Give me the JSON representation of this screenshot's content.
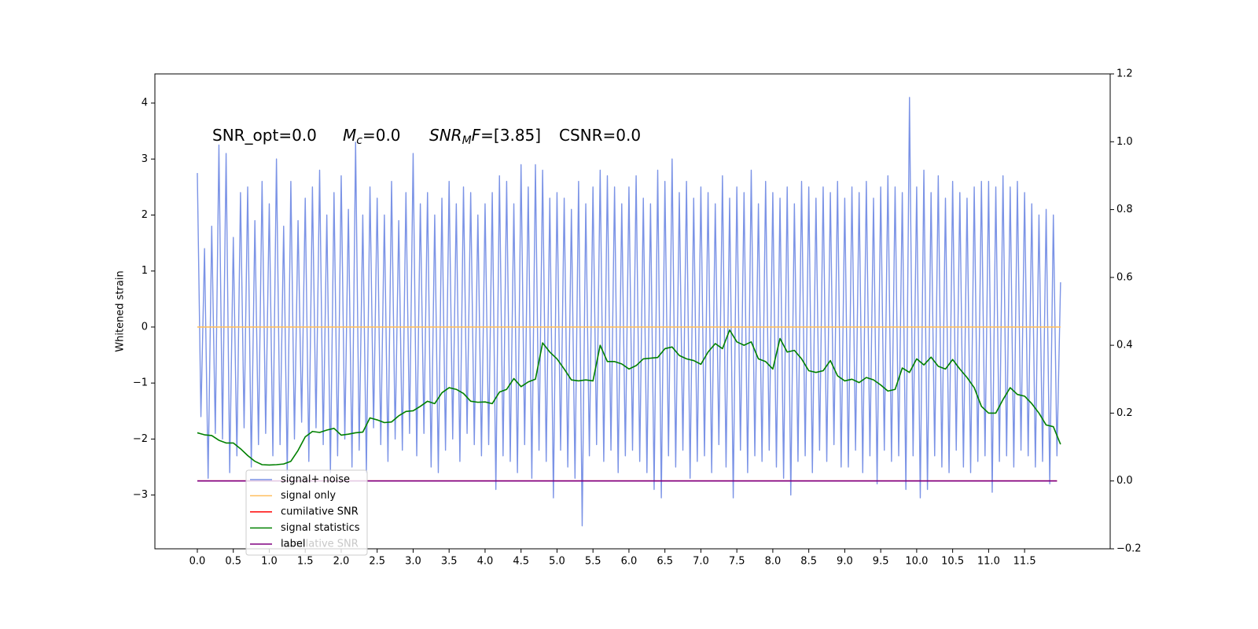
{
  "chart_data": {
    "type": "line",
    "y_label": "Whitened strain",
    "annotations": [
      {
        "text": "SNR_opt=0.0"
      },
      {
        "math": "M",
        "sub": "c",
        "text": "=0.0"
      },
      {
        "math": "SNR",
        "sub": "M",
        "math2": "F",
        "text": "=[3.85]"
      },
      {
        "text": "CSNR=0.0"
      }
    ],
    "xlim": [
      -0.59,
      12.69
    ],
    "ylim": [
      -3.96,
      4.52
    ],
    "y2lim": [
      -0.2,
      1.2
    ],
    "xticks": [
      {
        "value": 0,
        "label": "0.0"
      },
      {
        "value": 0.5,
        "label": "0.5"
      },
      {
        "value": 1,
        "label": "1.0"
      },
      {
        "value": 1.5,
        "label": "1.5"
      },
      {
        "value": 2,
        "label": "2.0"
      },
      {
        "value": 2.5,
        "label": "2.5"
      },
      {
        "value": 3,
        "label": "3.0"
      },
      {
        "value": 3.5,
        "label": "3.5"
      },
      {
        "value": 4,
        "label": "4.0"
      },
      {
        "value": 4.5,
        "label": "4.5"
      },
      {
        "value": 5,
        "label": "5.0"
      },
      {
        "value": 5.5,
        "label": "5.5"
      },
      {
        "value": 6,
        "label": "6.0"
      },
      {
        "value": 6.5,
        "label": "6.5"
      },
      {
        "value": 7,
        "label": "7.0"
      },
      {
        "value": 7.5,
        "label": "7.5"
      },
      {
        "value": 8,
        "label": "8.0"
      },
      {
        "value": 8.5,
        "label": "8.5"
      },
      {
        "value": 9,
        "label": "9.0"
      },
      {
        "value": 9.5,
        "label": "9.5"
      },
      {
        "value": 10,
        "label": "10.0"
      },
      {
        "value": 10.5,
        "label": "10.5"
      },
      {
        "value": 11,
        "label": "11.0"
      },
      {
        "value": 11.5,
        "label": "11.5"
      }
    ],
    "yticks": [
      {
        "value": -3,
        "label": "−3"
      },
      {
        "value": -2,
        "label": "−2"
      },
      {
        "value": -1,
        "label": "−1"
      },
      0,
      1,
      2,
      3,
      4
    ],
    "y2ticks": [
      {
        "value": -0.2,
        "label": "−0.2"
      },
      {
        "value": 0,
        "label": "0.0"
      },
      0.2,
      0.4,
      0.6,
      0.8,
      {
        "value": 1,
        "label": "1.0"
      },
      1.2
    ],
    "background_legend": [
      "cumilative SNR"
    ],
    "series": [
      {
        "name": "signal+ noise",
        "color": "#7b93e6",
        "axis": "y",
        "x": [
          0,
          0.05,
          0.1,
          0.15,
          0.2,
          0.25,
          0.3,
          0.35,
          0.4,
          0.45,
          0.5,
          0.55,
          0.6,
          0.65,
          0.7,
          0.75,
          0.8,
          0.85,
          0.9,
          0.95,
          1,
          1.05,
          1.1,
          1.15,
          1.2,
          1.25,
          1.3,
          1.35,
          1.4,
          1.45,
          1.5,
          1.55,
          1.6,
          1.65,
          1.7,
          1.75,
          1.8,
          1.85,
          1.9,
          1.95,
          2,
          2.05,
          2.1,
          2.15,
          2.2,
          2.25,
          2.3,
          2.35,
          2.4,
          2.45,
          2.5,
          2.55,
          2.6,
          2.65,
          2.7,
          2.75,
          2.8,
          2.85,
          2.9,
          2.95,
          3,
          3.05,
          3.1,
          3.15,
          3.2,
          3.25,
          3.3,
          3.35,
          3.4,
          3.45,
          3.5,
          3.55,
          3.6,
          3.65,
          3.7,
          3.75,
          3.8,
          3.85,
          3.9,
          3.95,
          4,
          4.05,
          4.1,
          4.15,
          4.2,
          4.25,
          4.3,
          4.35,
          4.4,
          4.45,
          4.5,
          4.55,
          4.6,
          4.65,
          4.7,
          4.75,
          4.8,
          4.85,
          4.9,
          4.95,
          5,
          5.05,
          5.1,
          5.15,
          5.2,
          5.25,
          5.3,
          5.35,
          5.4,
          5.45,
          5.5,
          5.55,
          5.6,
          5.65,
          5.7,
          5.75,
          5.8,
          5.85,
          5.9,
          5.95,
          6,
          6.05,
          6.1,
          6.15,
          6.2,
          6.25,
          6.3,
          6.35,
          6.4,
          6.45,
          6.5,
          6.55,
          6.6,
          6.65,
          6.7,
          6.75,
          6.8,
          6.85,
          6.9,
          6.95,
          7,
          7.05,
          7.1,
          7.15,
          7.2,
          7.25,
          7.3,
          7.35,
          7.4,
          7.45,
          7.5,
          7.55,
          7.6,
          7.65,
          7.7,
          7.75,
          7.8,
          7.85,
          7.9,
          7.95,
          8,
          8.05,
          8.1,
          8.15,
          8.2,
          8.25,
          8.3,
          8.35,
          8.4,
          8.45,
          8.5,
          8.55,
          8.6,
          8.65,
          8.7,
          8.75,
          8.8,
          8.85,
          8.9,
          8.95,
          9,
          9.05,
          9.1,
          9.15,
          9.2,
          9.25,
          9.3,
          9.35,
          9.4,
          9.45,
          9.5,
          9.55,
          9.6,
          9.65,
          9.7,
          9.75,
          9.8,
          9.85,
          9.9,
          9.95,
          10,
          10.05,
          10.1,
          10.15,
          10.2,
          10.25,
          10.3,
          10.35,
          10.4,
          10.45,
          10.5,
          10.55,
          10.6,
          10.65,
          10.7,
          10.75,
          10.8,
          10.85,
          10.9,
          10.95,
          11,
          11.05,
          11.1,
          11.15,
          11.2,
          11.25,
          11.3,
          11.35,
          11.4,
          11.45,
          11.5,
          11.55,
          11.6,
          11.65,
          11.7,
          11.75,
          11.8,
          11.85,
          11.9,
          11.95,
          12
        ],
        "values": [
          2.75,
          -1.6,
          1.4,
          -2.7,
          1.8,
          -1.9,
          3.25,
          -2.0,
          3.1,
          -2.6,
          1.6,
          -2.3,
          2.4,
          -1.8,
          2.5,
          -2.5,
          1.9,
          -2.1,
          2.6,
          -1.9,
          2.2,
          -2.3,
          3.0,
          -2.1,
          1.8,
          -2.6,
          2.6,
          -2.0,
          1.9,
          -1.7,
          2.3,
          -2.4,
          2.5,
          -1.8,
          2.8,
          -2.1,
          2.0,
          -2.6,
          2.4,
          -2.3,
          2.7,
          -2.0,
          2.1,
          -2.5,
          3.3,
          -2.2,
          2.0,
          -2.6,
          2.5,
          -1.8,
          2.3,
          -2.1,
          2.0,
          -2.4,
          2.6,
          -2.0,
          1.9,
          -2.2,
          2.4,
          -1.9,
          3.1,
          -2.3,
          2.2,
          -1.9,
          2.4,
          -2.5,
          2.0,
          -2.6,
          2.3,
          -2.2,
          2.6,
          -2.0,
          2.2,
          -2.4,
          2.5,
          -1.9,
          2.4,
          -2.1,
          2.0,
          -2.3,
          2.2,
          -2.1,
          2.4,
          -2.9,
          2.7,
          -2.3,
          2.6,
          -2.4,
          2.2,
          -2.6,
          2.9,
          -2.1,
          2.5,
          -2.7,
          2.9,
          -2.2,
          2.8,
          -2.4,
          2.3,
          -3.05,
          2.4,
          -2.2,
          2.3,
          -2.5,
          2.1,
          -2.7,
          2.6,
          -3.55,
          2.2,
          -2.3,
          2.5,
          -2.1,
          2.8,
          -2.4,
          2.7,
          -2.2,
          2.5,
          -2.6,
          2.2,
          -2.3,
          2.5,
          -2.2,
          2.7,
          -2.4,
          2.3,
          -2.6,
          2.2,
          -2.9,
          2.8,
          -3.05,
          2.6,
          -2.3,
          3.0,
          -2.5,
          2.4,
          -2.2,
          2.6,
          -2.7,
          2.3,
          -2.4,
          2.5,
          -2.3,
          2.4,
          -2.6,
          2.2,
          -2.1,
          2.7,
          -2.5,
          2.3,
          -3.05,
          2.5,
          -2.2,
          2.4,
          -2.6,
          2.8,
          -2.3,
          2.2,
          -2.4,
          2.6,
          -2.2,
          2.4,
          -2.5,
          2.3,
          -2.7,
          2.5,
          -3.0,
          2.2,
          -2.4,
          2.6,
          -2.3,
          2.5,
          -2.6,
          2.3,
          -2.2,
          2.5,
          -2.4,
          2.4,
          -2.1,
          2.6,
          -2.5,
          2.3,
          -2.5,
          2.5,
          -2.2,
          2.4,
          -2.6,
          2.6,
          -2.3,
          2.3,
          -2.8,
          2.5,
          -2.2,
          2.7,
          -2.4,
          2.5,
          -2.3,
          2.4,
          -2.9,
          4.1,
          -2.3,
          2.5,
          -3.05,
          2.8,
          -2.9,
          2.4,
          -2.3,
          2.7,
          -2.5,
          2.3,
          -2.6,
          2.6,
          -2.2,
          2.4,
          -2.5,
          2.3,
          -2.6,
          2.5,
          -2.4,
          2.6,
          -2.3,
          2.6,
          -2.95,
          2.5,
          -2.4,
          2.7,
          -2.3,
          2.5,
          -2.5,
          2.6,
          -2.2,
          2.4,
          -2.3,
          2.2,
          -2.5,
          2.0,
          -2.4,
          2.1,
          -2.8,
          2.0,
          -2.3,
          0.8
        ]
      },
      {
        "name": "signal only",
        "color": "#ffbf60",
        "axis": "y",
        "x": [
          0,
          12
        ],
        "values": [
          0,
          0
        ]
      },
      {
        "name": "cumilative SNR",
        "color": "#ff0000",
        "axis": "y2",
        "x": [
          0,
          11.95
        ],
        "values": [
          0,
          0
        ]
      },
      {
        "name": "signal statistics",
        "color": "#008000",
        "axis": "y2",
        "x": [
          0,
          0.1,
          0.2,
          0.3,
          0.4,
          0.5,
          0.6,
          0.7,
          0.8,
          0.9,
          1,
          1.1,
          1.2,
          1.3,
          1.4,
          1.5,
          1.6,
          1.7,
          1.8,
          1.9,
          2,
          2.1,
          2.2,
          2.3,
          2.4,
          2.5,
          2.6,
          2.7,
          2.8,
          2.9,
          3,
          3.1,
          3.2,
          3.3,
          3.4,
          3.5,
          3.6,
          3.7,
          3.8,
          3.9,
          4,
          4.1,
          4.2,
          4.3,
          4.4,
          4.5,
          4.6,
          4.7,
          4.8,
          4.9,
          5,
          5.1,
          5.2,
          5.3,
          5.4,
          5.5,
          5.6,
          5.7,
          5.8,
          5.9,
          6,
          6.1,
          6.2,
          6.3,
          6.4,
          6.5,
          6.6,
          6.7,
          6.8,
          6.9,
          7,
          7.1,
          7.2,
          7.3,
          7.4,
          7.5,
          7.6,
          7.7,
          7.8,
          7.9,
          8,
          8.1,
          8.2,
          8.3,
          8.4,
          8.5,
          8.6,
          8.7,
          8.8,
          8.9,
          9,
          9.1,
          9.2,
          9.3,
          9.4,
          9.5,
          9.6,
          9.7,
          9.8,
          9.9,
          10,
          10.1,
          10.2,
          10.3,
          10.4,
          10.5,
          10.6,
          10.7,
          10.8,
          10.9,
          11,
          11.1,
          11.2,
          11.3,
          11.4,
          11.5,
          11.6,
          11.7,
          11.8,
          11.9,
          12
        ],
        "values": [
          0.142,
          0.136,
          0.134,
          0.12,
          0.112,
          0.112,
          0.095,
          0.075,
          0.058,
          0.048,
          0.047,
          0.048,
          0.05,
          0.058,
          0.09,
          0.13,
          0.146,
          0.143,
          0.15,
          0.155,
          0.135,
          0.138,
          0.142,
          0.144,
          0.186,
          0.18,
          0.172,
          0.174,
          0.192,
          0.205,
          0.207,
          0.22,
          0.235,
          0.228,
          0.26,
          0.275,
          0.27,
          0.258,
          0.235,
          0.232,
          0.233,
          0.228,
          0.262,
          0.27,
          0.302,
          0.278,
          0.292,
          0.3,
          0.407,
          0.38,
          0.36,
          0.33,
          0.298,
          0.295,
          0.298,
          0.295,
          0.4,
          0.352,
          0.352,
          0.345,
          0.33,
          0.34,
          0.36,
          0.362,
          0.364,
          0.39,
          0.395,
          0.37,
          0.36,
          0.355,
          0.344,
          0.38,
          0.405,
          0.39,
          0.445,
          0.41,
          0.4,
          0.41,
          0.36,
          0.352,
          0.33,
          0.42,
          0.38,
          0.385,
          0.36,
          0.325,
          0.32,
          0.325,
          0.355,
          0.31,
          0.295,
          0.3,
          0.29,
          0.305,
          0.298,
          0.283,
          0.265,
          0.27,
          0.333,
          0.32,
          0.36,
          0.342,
          0.365,
          0.338,
          0.33,
          0.358,
          0.33,
          0.305,
          0.275,
          0.22,
          0.2,
          0.2,
          0.24,
          0.275,
          0.255,
          0.25,
          0.228,
          0.2,
          0.165,
          0.16,
          0.108
        ]
      },
      {
        "name": "label",
        "color": "#800080",
        "axis": "y2",
        "x": [
          0,
          11.95
        ],
        "values": [
          0,
          0
        ]
      }
    ]
  }
}
